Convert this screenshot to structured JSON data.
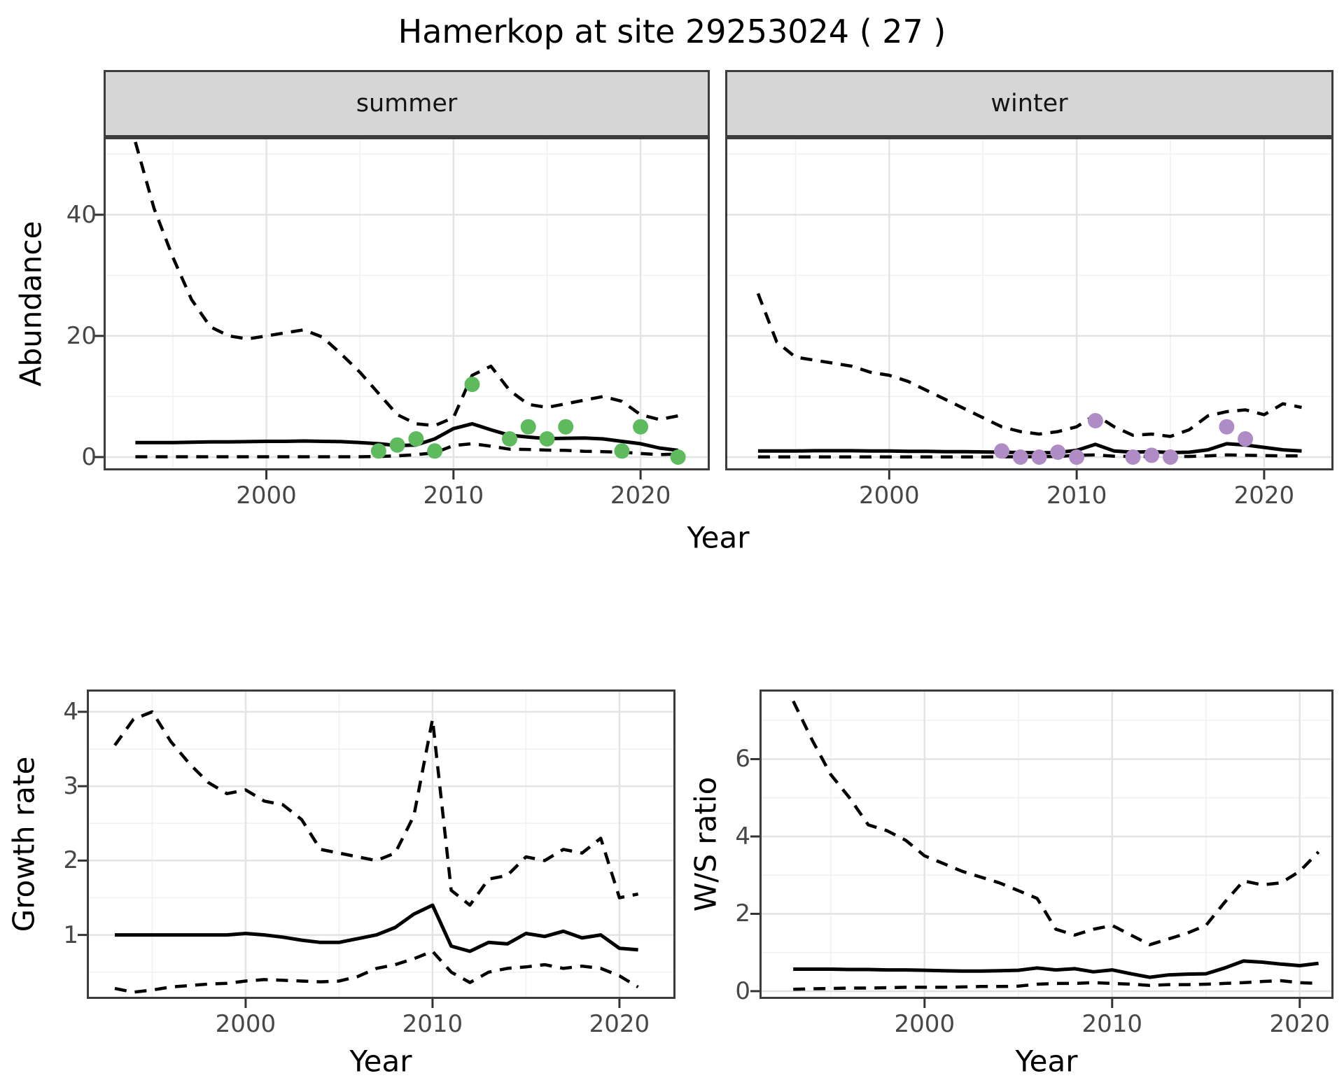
{
  "title": "Hamerkop at site 29253024 ( 27 )",
  "axes": {
    "x_label": "Year",
    "abundance_label": "Abundance",
    "growth_label": "Growth rate",
    "ws_label": "W/S ratio"
  },
  "facets": [
    {
      "label": "summer"
    },
    {
      "label": "winter"
    }
  ],
  "colors": {
    "summer_points": "#5dba5d",
    "winter_points": "#b08cc6",
    "line": "#000000",
    "grid_major": "#e3e3e3",
    "grid_minor": "#f1f1f1",
    "strip_bg": "#d6d6d6",
    "panel_border": "#3c3c3c",
    "axis_text": "#474747"
  },
  "chart_data": [
    {
      "name": "abundance_summer",
      "type": "line",
      "facet": "summer",
      "title": "Hamerkop at site 29253024 ( 27 )",
      "xlabel": "Year",
      "ylabel": "Abundance",
      "xlim": [
        1991.3,
        2023.7
      ],
      "ylim": [
        -2.2,
        52.8
      ],
      "xticks": [
        2000,
        2010,
        2020
      ],
      "xticks_minor": [
        1995,
        2005,
        2015
      ],
      "yticks": [
        0,
        20,
        40
      ],
      "yticks_minor": [
        10,
        30,
        50
      ],
      "grid": true,
      "years": [
        1993,
        1994,
        1995,
        1996,
        1997,
        1998,
        1999,
        2000,
        2001,
        2002,
        2003,
        2004,
        2005,
        2006,
        2007,
        2008,
        2009,
        2010,
        2011,
        2012,
        2013,
        2014,
        2015,
        2016,
        2017,
        2018,
        2019,
        2020,
        2021,
        2022
      ],
      "series": [
        {
          "name": "upper_ci",
          "style": "dashed",
          "values": [
            52,
            41,
            33,
            26,
            21.5,
            20,
            19.5,
            20,
            20.5,
            21,
            19.8,
            17,
            14,
            10.5,
            7,
            5.5,
            5.2,
            6.5,
            13.5,
            15,
            11,
            8.7,
            8.2,
            8.8,
            9.4,
            10,
            9.2,
            7,
            6.2,
            6.8
          ]
        },
        {
          "name": "median",
          "style": "solid",
          "values": [
            2.4,
            2.4,
            2.4,
            2.45,
            2.5,
            2.5,
            2.55,
            2.6,
            2.6,
            2.65,
            2.6,
            2.55,
            2.4,
            2.2,
            1.9,
            2.0,
            3.0,
            4.7,
            5.5,
            4.5,
            3.6,
            3.3,
            3.05,
            3.1,
            3.15,
            3.0,
            2.6,
            2.2,
            1.5,
            1.1
          ]
        },
        {
          "name": "lower_ci",
          "style": "dashed",
          "values": [
            0.05,
            0.05,
            0.05,
            0.05,
            0.05,
            0.05,
            0.05,
            0.05,
            0.05,
            0.05,
            0.05,
            0.05,
            0.05,
            0.1,
            0.2,
            0.4,
            0.7,
            1.9,
            2.2,
            1.8,
            1.3,
            1.25,
            1.15,
            1.1,
            0.95,
            0.9,
            0.8,
            0.6,
            0.4,
            0.5
          ]
        }
      ],
      "points": {
        "name": "observed_counts",
        "color_key": "summer_points",
        "data": [
          [
            2006,
            1
          ],
          [
            2007,
            2
          ],
          [
            2008,
            3
          ],
          [
            2009,
            1
          ],
          [
            2011,
            12
          ],
          [
            2013,
            3
          ],
          [
            2014,
            5
          ],
          [
            2015,
            3
          ],
          [
            2016,
            5
          ],
          [
            2019,
            1
          ],
          [
            2020,
            5
          ],
          [
            2022,
            0
          ]
        ]
      }
    },
    {
      "name": "abundance_winter",
      "type": "line",
      "facet": "winter",
      "xlabel": "Year",
      "ylabel": "Abundance",
      "xlim": [
        1991.25,
        2023.7
      ],
      "ylim": [
        -2.2,
        52.8
      ],
      "xticks": [
        2000,
        2010,
        2020
      ],
      "xticks_minor": [
        1995,
        2005,
        2015
      ],
      "yticks": [
        0,
        20,
        40
      ],
      "yticks_minor": [
        10,
        30,
        50
      ],
      "show_ytick_labels": false,
      "grid": true,
      "years": [
        1993,
        1994,
        1995,
        1996,
        1997,
        1998,
        1999,
        2000,
        2001,
        2002,
        2003,
        2004,
        2005,
        2006,
        2007,
        2008,
        2009,
        2010,
        2011,
        2012,
        2013,
        2014,
        2015,
        2016,
        2017,
        2018,
        2019,
        2020,
        2021,
        2022
      ],
      "series": [
        {
          "name": "upper_ci",
          "style": "dashed",
          "values": [
            27,
            19,
            16.5,
            16,
            15.5,
            15,
            14,
            13.5,
            12.5,
            11,
            9.5,
            8,
            6.5,
            5,
            4.2,
            3.8,
            4.2,
            5,
            7,
            5,
            3.6,
            3.8,
            3.4,
            4.5,
            6.8,
            7.5,
            7.8,
            7,
            8.8,
            8.2
          ]
        },
        {
          "name": "median",
          "style": "solid",
          "values": [
            1.0,
            1.0,
            1.0,
            1.05,
            1.05,
            1.05,
            1.0,
            1.0,
            0.95,
            0.95,
            0.9,
            0.9,
            0.85,
            0.8,
            0.75,
            0.7,
            0.75,
            1.1,
            2.1,
            1.0,
            0.8,
            0.9,
            0.75,
            0.8,
            1.2,
            2.2,
            2.0,
            1.6,
            1.2,
            1.0
          ]
        },
        {
          "name": "lower_ci",
          "style": "dashed",
          "values": [
            0.02,
            0.02,
            0.02,
            0.02,
            0.02,
            0.02,
            0.02,
            0.02,
            0.02,
            0.02,
            0.02,
            0.02,
            0.02,
            0.05,
            0.05,
            0.05,
            0.1,
            0.3,
            0.35,
            0.15,
            0.1,
            0.1,
            0.1,
            0.1,
            0.2,
            0.35,
            0.3,
            0.25,
            0.2,
            0.2
          ]
        }
      ],
      "points": {
        "name": "observed_counts",
        "color_key": "winter_points",
        "data": [
          [
            2006,
            1
          ],
          [
            2007,
            0
          ],
          [
            2008,
            0
          ],
          [
            2009,
            0.8
          ],
          [
            2010,
            0
          ],
          [
            2011,
            6
          ],
          [
            2013,
            0
          ],
          [
            2014,
            0.3
          ],
          [
            2015,
            0
          ],
          [
            2018,
            5
          ],
          [
            2019,
            3
          ]
        ]
      }
    },
    {
      "name": "growth_rate",
      "type": "line",
      "xlabel": "Year",
      "ylabel": "Growth rate",
      "xlim": [
        1991.5,
        2023.0
      ],
      "ylim": [
        0.14,
        4.3
      ],
      "xticks": [
        2000,
        2010,
        2020
      ],
      "xticks_minor": [
        1995,
        2005,
        2015
      ],
      "yticks": [
        1,
        2,
        3,
        4
      ],
      "yticks_minor": [
        0.5,
        1.5,
        2.5,
        3.5
      ],
      "grid": true,
      "years": [
        1993,
        1994,
        1995,
        1996,
        1997,
        1998,
        1999,
        2000,
        2001,
        2002,
        2003,
        2004,
        2005,
        2006,
        2007,
        2008,
        2009,
        2010,
        2011,
        2012,
        2013,
        2014,
        2015,
        2016,
        2017,
        2018,
        2019,
        2020,
        2021
      ],
      "series": [
        {
          "name": "upper_ci",
          "style": "dashed",
          "values": [
            3.55,
            3.9,
            4.0,
            3.6,
            3.3,
            3.05,
            2.9,
            2.95,
            2.8,
            2.75,
            2.55,
            2.15,
            2.1,
            2.05,
            2.0,
            2.1,
            2.6,
            3.9,
            1.6,
            1.4,
            1.75,
            1.8,
            2.05,
            2.0,
            2.15,
            2.1,
            2.3,
            1.5,
            1.55
          ]
        },
        {
          "name": "median",
          "style": "solid",
          "values": [
            1.0,
            1.0,
            1.0,
            1.0,
            1.0,
            1.0,
            1.0,
            1.02,
            1.0,
            0.97,
            0.93,
            0.9,
            0.9,
            0.95,
            1.0,
            1.1,
            1.28,
            1.4,
            0.85,
            0.78,
            0.9,
            0.88,
            1.02,
            0.98,
            1.05,
            0.96,
            1.0,
            0.82,
            0.8
          ]
        },
        {
          "name": "lower_ci",
          "style": "dashed",
          "values": [
            0.28,
            0.23,
            0.26,
            0.3,
            0.32,
            0.34,
            0.35,
            0.38,
            0.4,
            0.39,
            0.38,
            0.37,
            0.38,
            0.44,
            0.55,
            0.6,
            0.68,
            0.78,
            0.5,
            0.36,
            0.5,
            0.55,
            0.57,
            0.6,
            0.55,
            0.58,
            0.55,
            0.45,
            0.3
          ]
        }
      ]
    },
    {
      "name": "ws_ratio",
      "type": "line",
      "xlabel": "Year",
      "ylabel": "W/S ratio",
      "xlim": [
        1991.2,
        2021.8
      ],
      "ylim": [
        -0.2,
        7.8
      ],
      "xticks": [
        2000,
        2010,
        2020
      ],
      "xticks_minor": [
        1995,
        2005,
        2015
      ],
      "yticks": [
        0,
        2,
        4,
        6
      ],
      "yticks_minor": [
        1,
        3,
        5,
        7
      ],
      "grid": true,
      "years": [
        1993,
        1994,
        1995,
        1996,
        1997,
        1998,
        1999,
        2000,
        2001,
        2002,
        2003,
        2004,
        2005,
        2006,
        2007,
        2008,
        2009,
        2010,
        2011,
        2012,
        2013,
        2014,
        2015,
        2016,
        2017,
        2018,
        2019,
        2020,
        2021
      ],
      "series": [
        {
          "name": "upper_ci",
          "style": "dashed",
          "values": [
            7.5,
            6.5,
            5.6,
            5.0,
            4.3,
            4.15,
            3.9,
            3.5,
            3.3,
            3.1,
            2.95,
            2.8,
            2.6,
            2.4,
            1.6,
            1.45,
            1.6,
            1.7,
            1.45,
            1.2,
            1.35,
            1.5,
            1.7,
            2.3,
            2.85,
            2.75,
            2.8,
            3.1,
            3.6
          ]
        },
        {
          "name": "median",
          "style": "solid",
          "values": [
            0.57,
            0.57,
            0.57,
            0.56,
            0.56,
            0.55,
            0.55,
            0.54,
            0.53,
            0.52,
            0.52,
            0.53,
            0.54,
            0.6,
            0.55,
            0.58,
            0.5,
            0.55,
            0.45,
            0.36,
            0.42,
            0.44,
            0.45,
            0.6,
            0.78,
            0.75,
            0.7,
            0.66,
            0.72
          ]
        },
        {
          "name": "lower_ci",
          "style": "dashed",
          "values": [
            0.05,
            0.06,
            0.07,
            0.08,
            0.08,
            0.09,
            0.1,
            0.1,
            0.1,
            0.11,
            0.12,
            0.12,
            0.13,
            0.18,
            0.2,
            0.2,
            0.22,
            0.2,
            0.18,
            0.15,
            0.17,
            0.17,
            0.18,
            0.2,
            0.22,
            0.25,
            0.27,
            0.22,
            0.2
          ]
        }
      ]
    }
  ]
}
